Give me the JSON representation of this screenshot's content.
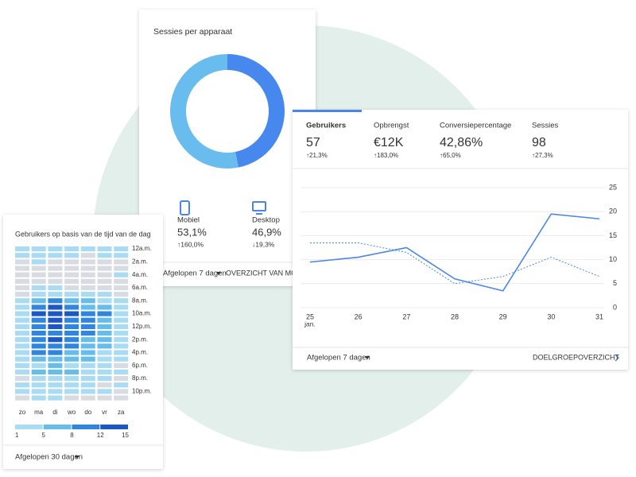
{
  "device_card": {
    "title": "Sessies per apparaat",
    "chart": {
      "type": "pie",
      "categories": [
        "Mobiel",
        "Desktop"
      ],
      "values": [
        53.1,
        46.9
      ],
      "value_labels": [
        "53,1%",
        "46,9%"
      ],
      "colors": [
        "#69bdee",
        "#4688ee"
      ],
      "changes": [
        "↑160,0%",
        "↓19,3%"
      ],
      "change_colors": [
        "#188038",
        "#d93025"
      ]
    },
    "footer": {
      "period": "Afgelopen 7 dagen",
      "link": "OVERZICHT VAN MO"
    }
  },
  "metrics_card": {
    "tabs": [
      {
        "label": "Gebruikers",
        "value": "57",
        "change": "↑21,3%"
      },
      {
        "label": "Opbrengst",
        "value": "€12K",
        "change": "↑183,0%"
      },
      {
        "label": "Conversiepercentage",
        "value": "42,86%",
        "change": "↑65,0%"
      },
      {
        "label": "Sessies",
        "value": "98",
        "change": "↑27,3%"
      }
    ],
    "change_color": "#188038",
    "chart": {
      "type": "line",
      "categories": [
        "25",
        "26",
        "27",
        "28",
        "29",
        "30",
        "31"
      ],
      "month_label": "jan.",
      "series": [
        {
          "color": "#4a86e8",
          "dashed": false,
          "values": [
            9.5,
            10.5,
            12.5,
            6,
            3.5,
            19.5,
            18.5
          ]
        },
        {
          "color": "#4a86e8",
          "dashed": true,
          "values": [
            13.5,
            13.5,
            11.5,
            5,
            6.5,
            10.5,
            6.5
          ]
        }
      ],
      "ylim": [
        0,
        25
      ],
      "yticks": [
        0,
        5,
        10,
        15,
        20,
        25
      ],
      "grid": true
    },
    "footer": {
      "period": "Afgelopen 7 dagen",
      "link": "DOELGROEPOVERZICHT"
    }
  },
  "heatmap_card": {
    "title": "Gebruikers op basis van de tijd van de dag",
    "chart": {
      "type": "heatmap",
      "columns": [
        "zo",
        "ma",
        "di",
        "wo",
        "do",
        "vr",
        "za"
      ],
      "row_labels": [
        "12a.m.",
        null,
        "2a.m.",
        null,
        "4a.m.",
        null,
        "6a.m.",
        null,
        "8a.m.",
        null,
        "10a.m.",
        null,
        "12p.m.",
        null,
        "2p.m.",
        null,
        "4p.m.",
        null,
        "6p.m.",
        null,
        "8p.m.",
        null,
        "10p.m.",
        null
      ],
      "values": [
        [
          3,
          4,
          3,
          2,
          3,
          2,
          2
        ],
        [
          2,
          3,
          2,
          2,
          0,
          2,
          3
        ],
        [
          0,
          2,
          0,
          0,
          0,
          0,
          0
        ],
        [
          0,
          0,
          0,
          0,
          0,
          0,
          0
        ],
        [
          0,
          0,
          0,
          0,
          0,
          0,
          2
        ],
        [
          0,
          0,
          0,
          0,
          0,
          0,
          0
        ],
        [
          0,
          2,
          3,
          0,
          0,
          0,
          0
        ],
        [
          0,
          3,
          4,
          3,
          2,
          2,
          0
        ],
        [
          2,
          6,
          9,
          6,
          5,
          4,
          2
        ],
        [
          3,
          10,
          13,
          9,
          7,
          6,
          3
        ],
        [
          4,
          12,
          14,
          12,
          9,
          8,
          3
        ],
        [
          4,
          11,
          13,
          10,
          9,
          7,
          4
        ],
        [
          3,
          10,
          12,
          11,
          8,
          6,
          3
        ],
        [
          4,
          9,
          11,
          9,
          8,
          6,
          4
        ],
        [
          3,
          10,
          12,
          9,
          7,
          5,
          3
        ],
        [
          3,
          9,
          11,
          10,
          6,
          6,
          2
        ],
        [
          2,
          8,
          9,
          7,
          6,
          4,
          3
        ],
        [
          3,
          6,
          7,
          6,
          5,
          3,
          2
        ],
        [
          2,
          4,
          5,
          4,
          4,
          3,
          0
        ],
        [
          3,
          5,
          6,
          5,
          3,
          2,
          2
        ],
        [
          0,
          3,
          4,
          3,
          3,
          2,
          0
        ],
        [
          2,
          4,
          3,
          3,
          2,
          0,
          2
        ],
        [
          2,
          3,
          3,
          2,
          2,
          2,
          0
        ],
        [
          0,
          2,
          2,
          0,
          0,
          0,
          0
        ]
      ],
      "empty_color": "#d8dbe2",
      "scale_ticks": [
        1,
        5,
        8,
        12,
        15
      ],
      "scale_colors": [
        "#a9dbf3",
        "#66bde9",
        "#2f86dc",
        "#1d58c2"
      ]
    },
    "footer": {
      "period": "Afgelopen 30 dagen"
    }
  }
}
